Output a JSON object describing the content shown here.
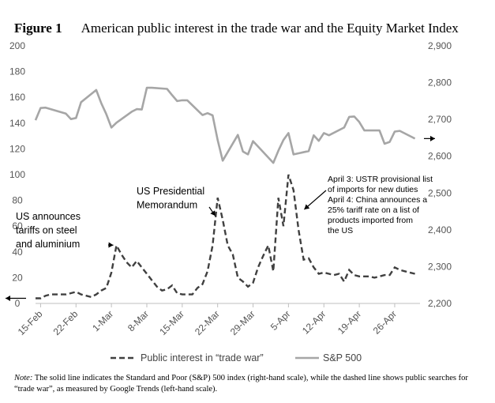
{
  "figure_label": "Figure 1",
  "figure_title": "American public interest in the trade war and the Equity Market Index",
  "note_label": "Note:",
  "note_text": "The solid line indicates the Standard and Poor (S&P) 500 index (right-hand scale), while the dashed line shows public searches for “trade war”, as measured by Google Trends (left-hand scale).",
  "colors": {
    "sp500": "#a6a6a6",
    "interest": "#404040",
    "axis": "#bfbfbf"
  },
  "chart_data": {
    "type": "line",
    "title": "American public interest in the trade war and the Equity Market Index",
    "x_tick_labels": [
      "15-Feb",
      "22-Feb",
      "1-Mar",
      "8-Mar",
      "15-Mar",
      "22-Mar",
      "29-Mar",
      "5-Apr",
      "12-Apr",
      "19-Apr",
      "26-Apr"
    ],
    "x_range": [
      "14-Feb",
      "1-May"
    ],
    "left_axis": {
      "ylim": [
        0,
        200
      ],
      "ticks": [
        0,
        20,
        40,
        60,
        80,
        100,
        120,
        140,
        160,
        180,
        200
      ]
    },
    "right_axis": {
      "ylim": [
        2200,
        2900
      ],
      "ticks": [
        "2,200",
        "2,300",
        "2,400",
        "2,500",
        "2,600",
        "2,700",
        "2,800",
        "2,900"
      ]
    },
    "grid": false,
    "legend_position": "bottom",
    "series": [
      {
        "name": "Public interest in “trade war”",
        "axis": "left",
        "style": "dashed",
        "x": [
          "14-Feb",
          "15-Feb",
          "16-Feb",
          "17-Feb",
          "18-Feb",
          "19-Feb",
          "20-Feb",
          "21-Feb",
          "22-Feb",
          "23-Feb",
          "24-Feb",
          "25-Feb",
          "26-Feb",
          "27-Feb",
          "28-Feb",
          "1-Mar",
          "2-Mar",
          "3-Mar",
          "4-Mar",
          "5-Mar",
          "6-Mar",
          "7-Mar",
          "8-Mar",
          "9-Mar",
          "10-Mar",
          "11-Mar",
          "12-Mar",
          "13-Mar",
          "14-Mar",
          "15-Mar",
          "16-Mar",
          "17-Mar",
          "18-Mar",
          "19-Mar",
          "20-Mar",
          "21-Mar",
          "22-Mar",
          "23-Mar",
          "24-Mar",
          "25-Mar",
          "26-Mar",
          "27-Mar",
          "28-Mar",
          "29-Mar",
          "30-Mar",
          "31-Mar",
          "1-Apr",
          "2-Apr",
          "3-Apr",
          "4-Apr",
          "5-Apr",
          "6-Apr",
          "7-Apr",
          "8-Apr",
          "9-Apr",
          "10-Apr",
          "11-Apr",
          "12-Apr",
          "13-Apr",
          "14-Apr",
          "15-Apr",
          "16-Apr",
          "17-Apr",
          "18-Apr",
          "19-Apr",
          "20-Apr",
          "21-Apr",
          "22-Apr",
          "23-Apr",
          "24-Apr",
          "25-Apr",
          "26-Apr",
          "27-Apr",
          "28-Apr",
          "29-Apr",
          "30-Apr"
        ],
        "values": [
          4,
          4,
          6,
          7,
          7,
          7,
          7,
          8,
          9,
          7,
          6,
          5,
          7,
          10,
          12,
          24,
          45,
          38,
          32,
          28,
          33,
          28,
          23,
          18,
          13,
          10,
          11,
          14,
          8,
          7,
          7,
          7,
          12,
          15,
          25,
          45,
          82,
          65,
          45,
          38,
          20,
          17,
          13,
          16,
          28,
          37,
          45,
          25,
          82,
          60,
          100,
          88,
          57,
          34,
          35,
          28,
          23,
          24,
          23,
          22,
          23,
          17,
          26,
          22,
          21,
          21,
          21,
          20,
          21,
          22,
          22,
          28,
          26,
          25,
          24,
          23
        ]
      },
      {
        "name": "S&P 500",
        "axis": "right",
        "style": "solid",
        "x": [
          "14-Feb",
          "15-Feb",
          "16-Feb",
          "20-Feb",
          "21-Feb",
          "22-Feb",
          "23-Feb",
          "26-Feb",
          "27-Feb",
          "28-Feb",
          "1-Mar",
          "2-Mar",
          "5-Mar",
          "6-Mar",
          "7-Mar",
          "8-Mar",
          "9-Mar",
          "12-Mar",
          "13-Mar",
          "14-Mar",
          "15-Mar",
          "16-Mar",
          "19-Mar",
          "20-Mar",
          "21-Mar",
          "22-Mar",
          "23-Mar",
          "26-Mar",
          "27-Mar",
          "28-Mar",
          "29-Mar",
          "2-Apr",
          "3-Apr",
          "4-Apr",
          "5-Apr",
          "6-Apr",
          "9-Apr",
          "10-Apr",
          "11-Apr",
          "12-Apr",
          "13-Apr",
          "16-Apr",
          "17-Apr",
          "18-Apr",
          "19-Apr",
          "20-Apr",
          "23-Apr",
          "24-Apr",
          "25-Apr",
          "26-Apr",
          "27-Apr",
          "30-Apr"
        ],
        "values": [
          2698,
          2731,
          2732,
          2716,
          2701,
          2704,
          2747,
          2780,
          2744,
          2714,
          2678,
          2691,
          2721,
          2728,
          2727,
          2786,
          2786,
          2783,
          2766,
          2750,
          2752,
          2752,
          2712,
          2717,
          2711,
          2644,
          2588,
          2658,
          2613,
          2605,
          2641,
          2582,
          2615,
          2644,
          2663,
          2605,
          2614,
          2657,
          2642,
          2663,
          2657,
          2678,
          2707,
          2708,
          2693,
          2670,
          2670,
          2634,
          2639,
          2667,
          2669,
          2648
        ]
      }
    ],
    "annotations": [
      {
        "text": [
          "US announces",
          "tariffs on steel",
          "and aluminium"
        ],
        "x": "2-Mar",
        "y": 44
      },
      {
        "text": [
          "US Presidential",
          "Memorandum"
        ],
        "x": "22-Mar",
        "y": 82
      },
      {
        "text": [
          "April 3: USTR provisional list",
          "of imports for new duties",
          "April 4: China announces a",
          "25% tariff rate on a list of",
          "products imported from",
          "the US"
        ],
        "x": "5-Apr",
        "y": 100
      }
    ]
  }
}
